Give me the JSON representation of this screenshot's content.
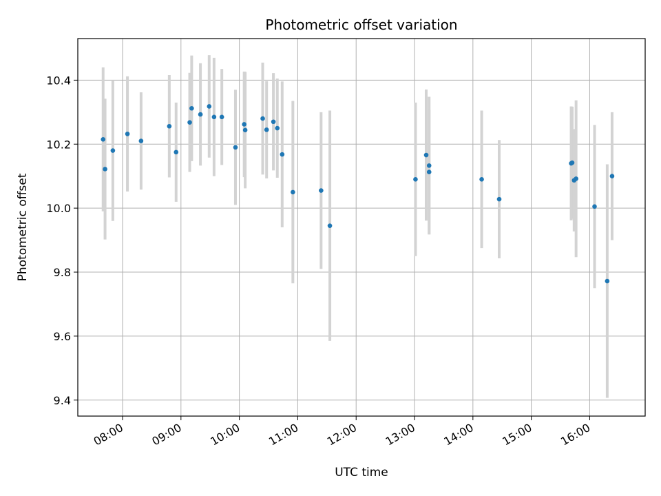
{
  "chart_data": {
    "type": "scatter",
    "title": "Photometric offset variation",
    "xlabel": "UTC time",
    "ylabel": "Photometric offset",
    "xlim": [
      "07:14",
      "16:57"
    ],
    "ylim": [
      9.35,
      10.53
    ],
    "x_ticks": [
      "08:00",
      "09:00",
      "10:00",
      "11:00",
      "12:00",
      "13:00",
      "14:00",
      "15:00",
      "16:00"
    ],
    "y_ticks": [
      9.4,
      9.6,
      9.8,
      10.0,
      10.2,
      10.4
    ],
    "grid": true,
    "marker_color": "#1f77b4",
    "errorbar_color": "#d3d3d3",
    "points": [
      {
        "x": "07:40",
        "y": 10.215,
        "err": 0.225
      },
      {
        "x": "07:42",
        "y": 10.122,
        "err": 0.22
      },
      {
        "x": "07:50",
        "y": 10.18,
        "err": 0.22
      },
      {
        "x": "08:05",
        "y": 10.232,
        "err": 0.18
      },
      {
        "x": "08:19",
        "y": 10.21,
        "err": 0.152
      },
      {
        "x": "08:48",
        "y": 10.256,
        "err": 0.16
      },
      {
        "x": "08:55",
        "y": 10.175,
        "err": 0.155
      },
      {
        "x": "09:09",
        "y": 10.268,
        "err": 0.155
      },
      {
        "x": "09:11",
        "y": 10.312,
        "err": 0.165
      },
      {
        "x": "09:20",
        "y": 10.293,
        "err": 0.16
      },
      {
        "x": "09:29",
        "y": 10.318,
        "err": 0.16
      },
      {
        "x": "09:34",
        "y": 10.285,
        "err": 0.185
      },
      {
        "x": "09:42",
        "y": 10.285,
        "err": 0.15
      },
      {
        "x": "09:56",
        "y": 10.19,
        "err": 0.18
      },
      {
        "x": "10:05",
        "y": 10.262,
        "err": 0.165
      },
      {
        "x": "10:06",
        "y": 10.244,
        "err": 0.182
      },
      {
        "x": "10:24",
        "y": 10.28,
        "err": 0.175
      },
      {
        "x": "10:28",
        "y": 10.245,
        "err": 0.152
      },
      {
        "x": "10:35",
        "y": 10.27,
        "err": 0.152
      },
      {
        "x": "10:39",
        "y": 10.25,
        "err": 0.155
      },
      {
        "x": "10:44",
        "y": 10.168,
        "err": 0.228
      },
      {
        "x": "10:55",
        "y": 10.05,
        "err": 0.285
      },
      {
        "x": "11:24",
        "y": 10.055,
        "err": 0.245
      },
      {
        "x": "11:33",
        "y": 9.945,
        "err": 0.36
      },
      {
        "x": "13:01",
        "y": 10.09,
        "err": 0.24
      },
      {
        "x": "13:12",
        "y": 10.166,
        "err": 0.205
      },
      {
        "x": "13:15",
        "y": 10.133,
        "err": 0.215
      },
      {
        "x": "13:15",
        "y": 10.113,
        "err": 0.195
      },
      {
        "x": "14:09",
        "y": 10.09,
        "err": 0.215
      },
      {
        "x": "14:27",
        "y": 10.028,
        "err": 0.185
      },
      {
        "x": "15:41",
        "y": 10.14,
        "err": 0.178
      },
      {
        "x": "15:42",
        "y": 10.142,
        "err": 0.175
      },
      {
        "x": "15:44",
        "y": 10.087,
        "err": 0.16
      },
      {
        "x": "15:46",
        "y": 10.092,
        "err": 0.245
      },
      {
        "x": "16:05",
        "y": 10.005,
        "err": 0.255
      },
      {
        "x": "16:18",
        "y": 9.772,
        "err": 0.365
      },
      {
        "x": "16:23",
        "y": 10.1,
        "err": 0.2
      }
    ]
  }
}
